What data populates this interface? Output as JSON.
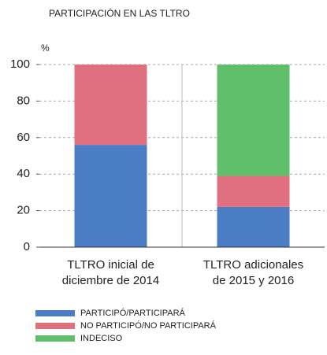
{
  "chart_data": {
    "type": "stacked_bar",
    "title": "PARTICIPACIÓN EN LAS TLTRO",
    "y_label": "%",
    "categories": [
      [
        "TLTRO inicial de",
        "diciembre de 2014"
      ],
      [
        "TLTRO adicionales",
        "de 2015 y 2016"
      ]
    ],
    "series": [
      {
        "name": "PARTICIPÓ/PARTICIPARÁ",
        "color": "#4a7dc4",
        "values": [
          56,
          22
        ]
      },
      {
        "name": "NO PARTICIPÓ/NO PARTICIPARÁ",
        "color": "#e07080",
        "values": [
          44,
          17
        ]
      },
      {
        "name": "INDECISO",
        "color": "#5fbf6a",
        "values": [
          0,
          61
        ]
      }
    ],
    "ylim": [
      0,
      100
    ],
    "yticks": [
      0,
      20,
      40,
      60,
      80,
      100
    ],
    "grid": true
  }
}
